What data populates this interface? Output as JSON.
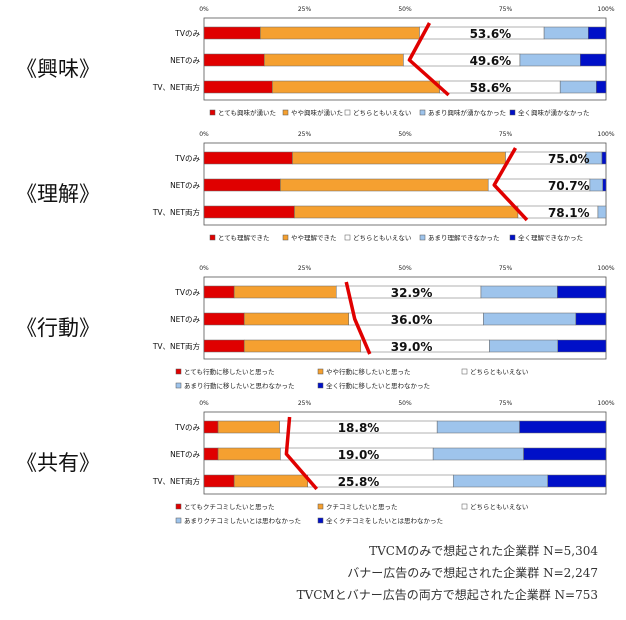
{
  "colors": {
    "very": "#e00000",
    "somewhat": "#f5a030",
    "neutral": "#ffffff",
    "notmuch": "#9ec4ec",
    "notatall": "#0010c8",
    "marker": "#e00000",
    "border": "#555555"
  },
  "chart_data": [
    {
      "type": "bar",
      "orientation": "horizontal",
      "stacked": true,
      "title": "《興味》",
      "categories": [
        "TVのみ",
        "NETのみ",
        "TV、NET両方"
      ],
      "xlim": [
        0,
        100
      ],
      "tick_labels": [
        "0%",
        "25%",
        "50%",
        "75%",
        "100%"
      ],
      "series": [
        {
          "name": "とても興味が湧いた",
          "values": [
            14,
            15,
            17
          ]
        },
        {
          "name": "やや興味が湧いた",
          "values": [
            39.6,
            34.6,
            41.6
          ]
        },
        {
          "name": "どちらともいえない",
          "values": [
            31,
            29,
            30
          ]
        },
        {
          "name": "あまり興味が湧かなかった",
          "values": [
            11,
            15,
            9
          ]
        },
        {
          "name": "全く興味が湧かなかった",
          "values": [
            4.4,
            6.4,
            2.4
          ]
        }
      ],
      "annotations": [
        "53.6%",
        "49.6%",
        "58.6%"
      ]
    },
    {
      "type": "bar",
      "orientation": "horizontal",
      "stacked": true,
      "title": "《理解》",
      "categories": [
        "TVのみ",
        "NETのみ",
        "TV、NET両方"
      ],
      "xlim": [
        0,
        100
      ],
      "tick_labels": [
        "0%",
        "25%",
        "50%",
        "75%",
        "100%"
      ],
      "series": [
        {
          "name": "とても理解できた",
          "values": [
            22,
            19,
            22.5
          ]
        },
        {
          "name": "やや理解できた",
          "values": [
            53,
            51.7,
            55.6
          ]
        },
        {
          "name": "どちらともいえない",
          "values": [
            20,
            25.3,
            19.9
          ]
        },
        {
          "name": "あまり理解できなかった",
          "values": [
            4,
            3.2,
            2
          ]
        },
        {
          "name": "全く理解できなかった",
          "values": [
            1,
            0.8,
            0
          ]
        }
      ],
      "annotations": [
        "75.0%",
        "70.7%",
        "78.1%"
      ]
    },
    {
      "type": "bar",
      "orientation": "horizontal",
      "stacked": true,
      "title": "《行動》",
      "categories": [
        "TVのみ",
        "NETのみ",
        "TV、NET両方"
      ],
      "xlim": [
        0,
        100
      ],
      "tick_labels": [
        "0%",
        "25%",
        "50%",
        "75%",
        "100%"
      ],
      "series": [
        {
          "name": "とても行動に移したいと思った",
          "values": [
            7.5,
            10,
            10
          ]
        },
        {
          "name": "やや行動に移したいと思った",
          "values": [
            25.4,
            26,
            29
          ]
        },
        {
          "name": "どちらともいえない",
          "values": [
            36,
            33.5,
            32
          ]
        },
        {
          "name": "あまり行動に移したいと思わなかった",
          "values": [
            19,
            23,
            17
          ]
        },
        {
          "name": "全く行動に移したいと思わなかった",
          "values": [
            12.1,
            7.5,
            12
          ]
        }
      ],
      "annotations": [
        "32.9%",
        "36.0%",
        "39.0%"
      ]
    },
    {
      "type": "bar",
      "orientation": "horizontal",
      "stacked": true,
      "title": "《共有》",
      "categories": [
        "TVのみ",
        "NETのみ",
        "TV、NET両方"
      ],
      "xlim": [
        0,
        100
      ],
      "tick_labels": [
        "0%",
        "25%",
        "50%",
        "75%",
        "100%"
      ],
      "series": [
        {
          "name": "とてもクチコミしたいと思った",
          "values": [
            3.5,
            3.5,
            7.5
          ]
        },
        {
          "name": "クチコミしたいと思った",
          "values": [
            15.3,
            15.5,
            18.3
          ]
        },
        {
          "name": "どちらともいえない",
          "values": [
            39.2,
            38,
            36.2
          ]
        },
        {
          "name": "あまりクチコミしたいとは思わなかった",
          "values": [
            20.5,
            22.5,
            23.5
          ]
        },
        {
          "name": "全くクチコミをしたいとは思わなかった",
          "values": [
            21.5,
            20.5,
            14.5
          ]
        }
      ],
      "annotations": [
        "18.8%",
        "19.0%",
        "25.8%"
      ]
    }
  ],
  "notes": [
    "TVCMのみで想起された企業群 N=5,304",
    "バナー広告のみで想起された企業群 N=2,247",
    "TVCMとバナー広告の両方で想起された企業群 N=753"
  ]
}
